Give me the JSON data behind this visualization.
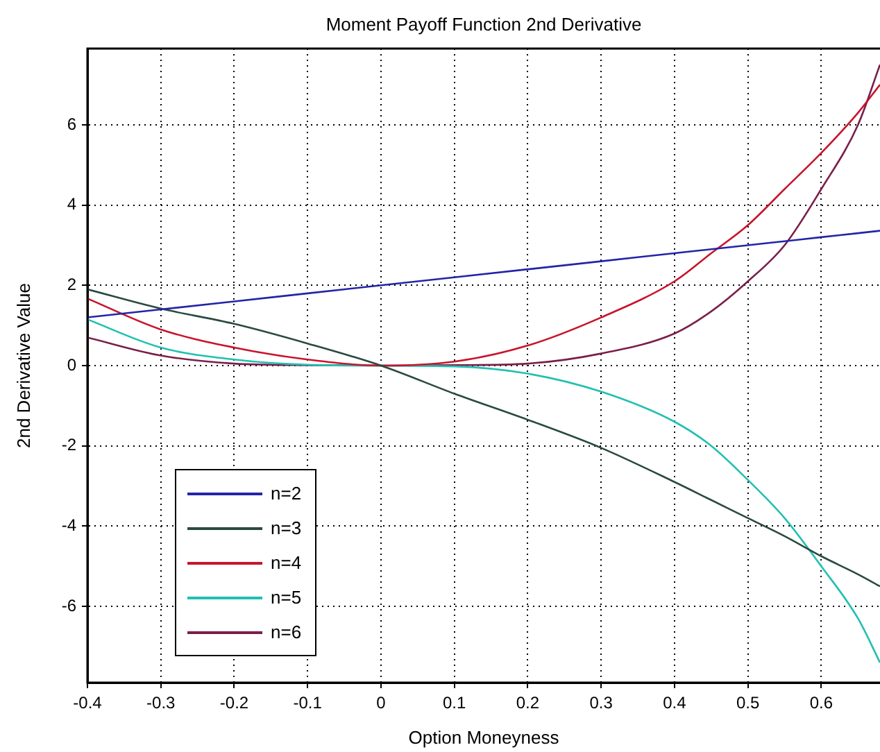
{
  "chart_data": {
    "type": "line",
    "title": "Moment Payoff Function 2nd Derivative",
    "xlabel": "Option Moneyness",
    "ylabel": "2nd Derivative Value",
    "x": [
      -0.4,
      -0.3,
      -0.2,
      -0.1,
      0,
      0.1,
      0.2,
      0.3,
      0.4,
      0.45,
      0.5,
      0.55,
      0.6,
      0.65,
      0.68
    ],
    "series": [
      {
        "name": "n=2",
        "color": "#2424a8",
        "values": [
          1.2,
          1.4,
          1.6,
          1.8,
          2.0,
          2.2,
          2.4,
          2.6,
          2.8,
          2.9,
          3.0,
          3.1,
          3.2,
          3.3,
          3.36
        ]
      },
      {
        "name": "n=3",
        "color": "#2a4a40",
        "values": [
          1.9,
          1.42,
          1.04,
          0.55,
          0,
          -0.7,
          -1.35,
          -2.05,
          -2.9,
          -3.35,
          -3.8,
          -4.25,
          -4.75,
          -5.2,
          -5.5
        ]
      },
      {
        "name": "n=4",
        "color": "#c8142c",
        "values": [
          1.67,
          0.9,
          0.45,
          0.15,
          0,
          0.1,
          0.5,
          1.2,
          2.1,
          2.8,
          3.5,
          4.4,
          5.3,
          6.3,
          7.0
        ]
      },
      {
        "name": "n=5",
        "color": "#20c0b0",
        "values": [
          1.15,
          0.45,
          0.15,
          0.02,
          0,
          -0.02,
          -0.2,
          -0.65,
          -1.4,
          -2.0,
          -2.85,
          -3.8,
          -5.0,
          -6.3,
          -7.4
        ]
      },
      {
        "name": "n=6",
        "color": "#7a1f4a",
        "values": [
          0.7,
          0.25,
          0.05,
          0.01,
          0,
          0.01,
          0.05,
          0.3,
          0.8,
          1.35,
          2.1,
          3.0,
          4.4,
          6.0,
          7.5
        ]
      }
    ],
    "xlim": [
      -0.4,
      0.68
    ],
    "xticks": [
      -0.4,
      -0.3,
      -0.2,
      -0.1,
      0,
      0.1,
      0.2,
      0.3,
      0.4,
      0.5,
      0.6
    ],
    "ylim": [
      -7.9,
      7.9
    ],
    "yticks": [
      -6,
      -4,
      -2,
      0,
      2,
      4,
      6
    ],
    "grid": true,
    "legend": "bottom left",
    "marker": "none",
    "line_style": "solid"
  }
}
